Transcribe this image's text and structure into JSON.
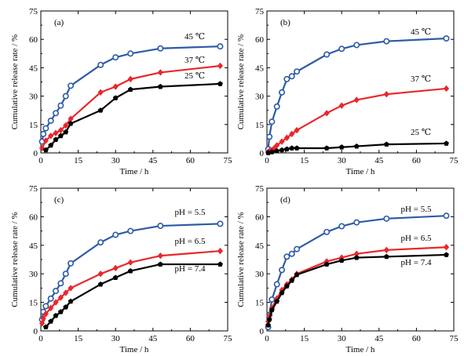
{
  "chart_data": [
    {
      "type": "line",
      "panel_label": "(a)",
      "xlabel": "Time / h",
      "ylabel": "Cumulative release rate / %",
      "xlim": [
        0,
        75
      ],
      "ylim": [
        0,
        75
      ],
      "xticks": [
        "0",
        "15",
        "30",
        "45",
        "60",
        "75"
      ],
      "yticks": [
        "0",
        "15",
        "30",
        "45",
        "60",
        "75"
      ],
      "series": [
        {
          "name": "45 ℃",
          "color": "#2e5ba6",
          "marker": "circle",
          "x": [
            0.5,
            1,
            2,
            4,
            6,
            8,
            10,
            12,
            24,
            30,
            36,
            48,
            72
          ],
          "y": [
            6,
            10,
            13,
            17,
            21,
            25,
            30,
            35.5,
            46.5,
            50.5,
            52.5,
            55.2,
            56.3
          ]
        },
        {
          "name": "37 ℃",
          "color": "#e8282b",
          "marker": "diamond",
          "x": [
            0.5,
            2,
            4,
            6,
            8,
            10,
            12,
            24,
            30,
            36,
            48,
            72
          ],
          "y": [
            2.5,
            6.5,
            9,
            10.5,
            12,
            14.5,
            18,
            32,
            35,
            39,
            42.5,
            46
          ]
        },
        {
          "name": "25 ℃",
          "color": "#000000",
          "marker": "pentagon",
          "x": [
            2,
            4,
            6,
            8,
            10,
            12,
            24,
            30,
            36,
            48,
            72
          ],
          "y": [
            1.5,
            4,
            7,
            9,
            11,
            15.5,
            22.5,
            29,
            33.5,
            35,
            36.5
          ]
        }
      ]
    },
    {
      "type": "line",
      "panel_label": "(b)",
      "xlabel": "Time / h",
      "ylabel": "Cumulative release rate / %",
      "xlim": [
        0,
        75
      ],
      "ylim": [
        0,
        75
      ],
      "xticks": [
        "0",
        "15",
        "30",
        "45",
        "60",
        "75"
      ],
      "yticks": [
        "0",
        "15",
        "30",
        "45",
        "60",
        "75"
      ],
      "series": [
        {
          "name": "45 ℃",
          "color": "#2e5ba6",
          "marker": "circle",
          "x": [
            0.5,
            1,
            2,
            4,
            6,
            8,
            10,
            12,
            24,
            30,
            36,
            48,
            72
          ],
          "y": [
            2,
            8.5,
            16.5,
            24.5,
            32,
            39,
            40.5,
            43,
            52,
            55,
            57,
            59,
            60.5
          ]
        },
        {
          "name": "37 ℃",
          "color": "#e8282b",
          "marker": "diamond",
          "x": [
            0.5,
            1,
            2,
            3,
            4,
            6,
            8,
            10,
            12,
            24,
            30,
            36,
            48,
            72
          ],
          "y": [
            0.5,
            1,
            1.5,
            2.5,
            4,
            6,
            8,
            10,
            12,
            21,
            25,
            28,
            31,
            34
          ]
        },
        {
          "name": "25 ℃",
          "color": "#000000",
          "marker": "pentagon",
          "x": [
            0.5,
            2,
            4,
            6,
            8,
            10,
            12,
            24,
            30,
            36,
            48,
            72
          ],
          "y": [
            0,
            0.5,
            1,
            1.5,
            2,
            2.5,
            2.5,
            2.5,
            3,
            3.5,
            4.5,
            5
          ]
        }
      ]
    },
    {
      "type": "line",
      "panel_label": "(c)",
      "xlabel": "Time / h",
      "ylabel": "Cumulative release rate / %",
      "xlim": [
        0,
        75
      ],
      "ylim": [
        0,
        75
      ],
      "xticks": [
        "0",
        "15",
        "30",
        "45",
        "60",
        "75"
      ],
      "yticks": [
        "0",
        "15",
        "30",
        "45",
        "60",
        "75"
      ],
      "series": [
        {
          "name": "pH = 5.5",
          "color": "#2e5ba6",
          "marker": "circle",
          "x": [
            0.5,
            1,
            2,
            4,
            6,
            8,
            10,
            12,
            24,
            30,
            36,
            48,
            72
          ],
          "y": [
            6,
            10,
            13,
            17,
            21,
            25,
            30,
            35.5,
            46.5,
            50.5,
            52.5,
            55.2,
            56.3
          ]
        },
        {
          "name": "pH = 6.5",
          "color": "#e8282b",
          "marker": "diamond",
          "x": [
            0.5,
            1,
            2,
            4,
            6,
            8,
            10,
            12,
            24,
            30,
            36,
            48,
            72
          ],
          "y": [
            4,
            6.5,
            9,
            12,
            15,
            17.5,
            20,
            22.5,
            30,
            33,
            36,
            39.5,
            42
          ]
        },
        {
          "name": "pH = 7.4",
          "color": "#000000",
          "marker": "pentagon",
          "x": [
            2,
            4,
            6,
            8,
            10,
            12,
            24,
            30,
            36,
            48,
            72
          ],
          "y": [
            2,
            5,
            8,
            10,
            12.5,
            15.5,
            24.5,
            28,
            31.5,
            35,
            35
          ]
        }
      ]
    },
    {
      "type": "line",
      "panel_label": "(d)",
      "xlabel": "Time / h",
      "ylabel": "Cumulative release rate / %",
      "xlim": [
        0,
        75
      ],
      "ylim": [
        0,
        75
      ],
      "xticks": [
        "0",
        "15",
        "30",
        "45",
        "60",
        "75"
      ],
      "yticks": [
        "0",
        "15",
        "30",
        "45",
        "60",
        "75"
      ],
      "series": [
        {
          "name": "pH = 5.5",
          "color": "#2e5ba6",
          "marker": "circle",
          "x": [
            0.5,
            1,
            2,
            4,
            6,
            8,
            10,
            12,
            24,
            30,
            36,
            48,
            72
          ],
          "y": [
            2,
            8.5,
            16.5,
            24.5,
            32,
            39,
            40.5,
            43,
            52,
            55,
            57,
            59,
            60.5
          ]
        },
        {
          "name": "pH = 6.5",
          "color": "#e8282b",
          "marker": "diamond",
          "x": [
            0.5,
            1,
            2,
            4,
            6,
            8,
            10,
            12,
            24,
            30,
            36,
            48,
            72
          ],
          "y": [
            5,
            8,
            12,
            17,
            21.5,
            24.5,
            27,
            30,
            36.5,
            38.5,
            40.5,
            42.5,
            44
          ]
        },
        {
          "name": "pH = 7.4",
          "color": "#000000",
          "marker": "pentagon",
          "x": [
            0.5,
            1,
            2,
            4,
            6,
            8,
            10,
            12,
            24,
            30,
            36,
            48,
            72
          ],
          "y": [
            3,
            6,
            11,
            15.5,
            20,
            23.5,
            26.5,
            29.5,
            35,
            37,
            38.5,
            39,
            40
          ]
        }
      ]
    }
  ]
}
